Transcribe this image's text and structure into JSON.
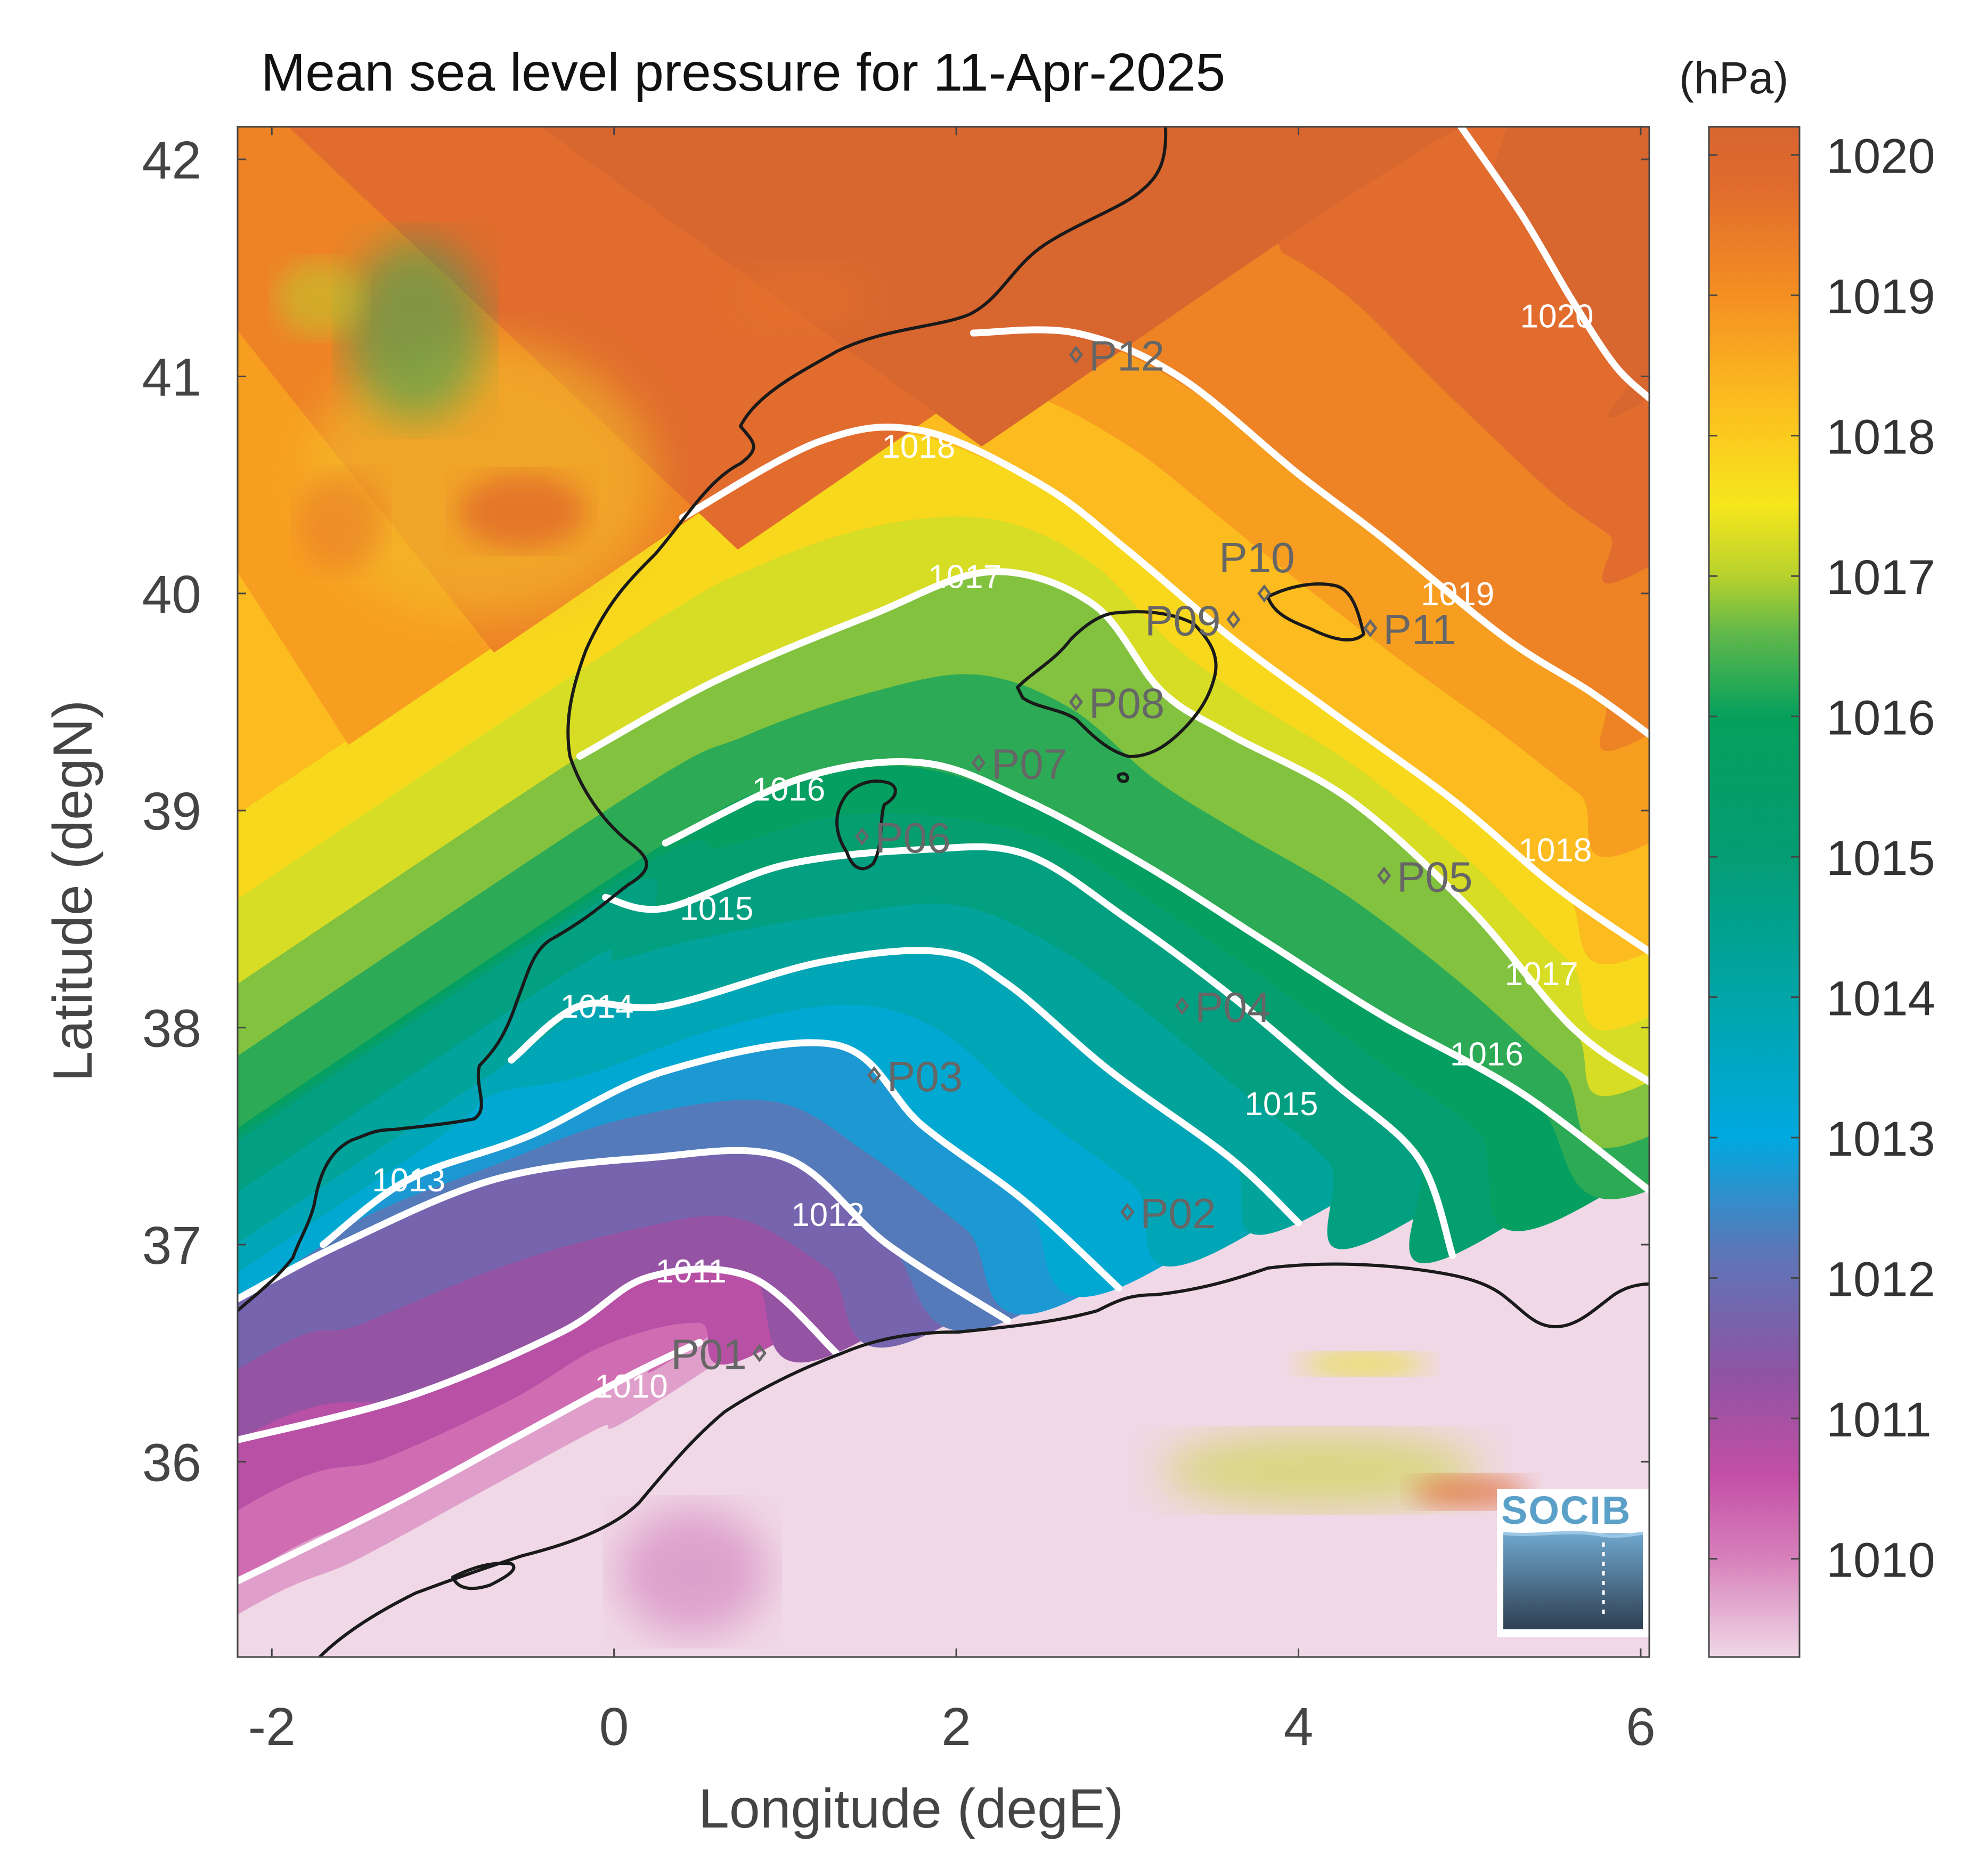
{
  "title": "Mean sea level pressure for 11-Apr-2025",
  "colorbar": {
    "unit": "(hPa)",
    "ticks": [
      1010,
      1011,
      1012,
      1013,
      1014,
      1015,
      1016,
      1017,
      1018,
      1019,
      1020
    ],
    "range": [
      1009.3,
      1020.2
    ],
    "colormap": [
      {
        "v": 1009.3,
        "c": "#f0d8e6"
      },
      {
        "v": 1010.0,
        "c": "#d780bb"
      },
      {
        "v": 1010.6,
        "c": "#c34fa6"
      },
      {
        "v": 1011.3,
        "c": "#9053a3"
      },
      {
        "v": 1012.2,
        "c": "#5b77b8"
      },
      {
        "v": 1013.0,
        "c": "#00a9e0"
      },
      {
        "v": 1014.0,
        "c": "#00a5a8"
      },
      {
        "v": 1015.0,
        "c": "#049d74"
      },
      {
        "v": 1016.0,
        "c": "#06a05c"
      },
      {
        "v": 1016.6,
        "c": "#62b84a"
      },
      {
        "v": 1017.0,
        "c": "#b7d22d"
      },
      {
        "v": 1017.5,
        "c": "#f6e61c"
      },
      {
        "v": 1018.2,
        "c": "#fcbf1f"
      },
      {
        "v": 1019.0,
        "c": "#f48f22"
      },
      {
        "v": 1019.8,
        "c": "#e06a2e"
      },
      {
        "v": 1020.2,
        "c": "#d8662f"
      }
    ]
  },
  "axes": {
    "xlabel": "Longitude (degE)",
    "ylabel": "Latitude (degN)",
    "xlim": [
      -2.2,
      6.05
    ],
    "ylim": [
      35.1,
      42.15
    ],
    "xticks": [
      -2,
      0,
      2,
      4,
      6
    ],
    "yticks": [
      36,
      37,
      38,
      39,
      40,
      41,
      42
    ]
  },
  "contour_labels": [
    {
      "text": "1010",
      "lon": 0.1,
      "lat": 36.35
    },
    {
      "text": "1011",
      "lon": 0.45,
      "lat": 36.88
    },
    {
      "text": "1012",
      "lon": 1.25,
      "lat": 37.14
    },
    {
      "text": "1013",
      "lon": -1.2,
      "lat": 37.3
    },
    {
      "text": "1014",
      "lon": -0.1,
      "lat": 38.1
    },
    {
      "text": "1015",
      "lon": 0.6,
      "lat": 38.55
    },
    {
      "text": "1015",
      "lon": 3.9,
      "lat": 37.65
    },
    {
      "text": "1016",
      "lon": 1.02,
      "lat": 39.1
    },
    {
      "text": "1016",
      "lon": 5.1,
      "lat": 37.88
    },
    {
      "text": "1017",
      "lon": 2.05,
      "lat": 40.08
    },
    {
      "text": "1017",
      "lon": 5.42,
      "lat": 38.25
    },
    {
      "text": "1018",
      "lon": 1.78,
      "lat": 40.68
    },
    {
      "text": "1018",
      "lon": 5.5,
      "lat": 38.82
    },
    {
      "text": "1019",
      "lon": 4.93,
      "lat": 40.0
    },
    {
      "text": "1020",
      "lon": 5.51,
      "lat": 41.28
    }
  ],
  "stations": [
    {
      "name": "P01",
      "lon": 0.85,
      "lat": 36.5,
      "label_side": "left"
    },
    {
      "name": "P02",
      "lon": 3.0,
      "lat": 37.15,
      "label_side": "right"
    },
    {
      "name": "P03",
      "lon": 1.52,
      "lat": 37.78,
      "label_side": "right"
    },
    {
      "name": "P04",
      "lon": 3.32,
      "lat": 38.1,
      "label_side": "right"
    },
    {
      "name": "P05",
      "lon": 4.5,
      "lat": 38.7,
      "label_side": "right"
    },
    {
      "name": "P06",
      "lon": 1.45,
      "lat": 38.88,
      "label_side": "right"
    },
    {
      "name": "P07",
      "lon": 2.13,
      "lat": 39.22,
      "label_side": "right"
    },
    {
      "name": "P08",
      "lon": 2.7,
      "lat": 39.5,
      "label_side": "right"
    },
    {
      "name": "P09",
      "lon": 3.62,
      "lat": 39.88,
      "label_side": "left"
    },
    {
      "name": "P10",
      "lon": 3.8,
      "lat": 40.0,
      "label_side": "above"
    },
    {
      "name": "P11",
      "lon": 4.42,
      "lat": 39.84,
      "label_side": "right"
    },
    {
      "name": "P12",
      "lon": 2.7,
      "lat": 41.1,
      "label_side": "right"
    }
  ],
  "logo": {
    "text": "SOCIB"
  },
  "colors": {
    "contour": "#ffffff",
    "coast": "#1a1a1a",
    "station": "#666666",
    "frame": "#444444"
  }
}
